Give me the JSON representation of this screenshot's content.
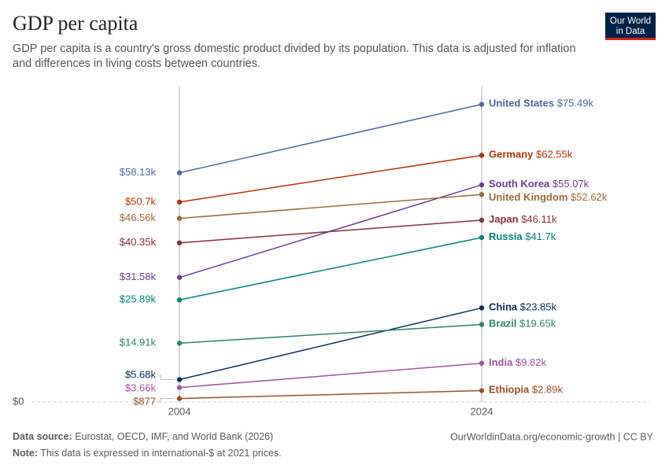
{
  "chart_data": {
    "type": "slope",
    "title": "GDP per capita",
    "subtitle": [
      "GDP per capita is a country's gross domestic product divided by its population. This data is adjusted for inflation",
      "and differences in living costs between countries."
    ],
    "logo": [
      "Our World",
      "in Data"
    ],
    "categories": [
      "2004",
      "2024"
    ],
    "ylim": [
      0,
      80000
    ],
    "yticks": [
      {
        "value": 0,
        "label": "$0"
      }
    ],
    "grid": true,
    "series": [
      {
        "name": "United States",
        "color": "#4c6a9c",
        "values": [
          58130,
          75490
        ],
        "value_labels": [
          "$58.13k",
          "$75.49k"
        ]
      },
      {
        "name": "Germany",
        "color": "#b13507",
        "values": [
          50700,
          62550
        ],
        "value_labels": [
          "$50.7k",
          "$62.55k"
        ]
      },
      {
        "name": "South Korea",
        "color": "#6d3e91",
        "values": [
          31580,
          55070
        ],
        "value_labels": [
          "$31.58k",
          "$55.07k"
        ]
      },
      {
        "name": "United Kingdom",
        "color": "#996d39",
        "values": [
          46560,
          52620
        ],
        "value_labels": [
          "$46.56k",
          "$52.62k"
        ]
      },
      {
        "name": "Japan",
        "color": "#883039",
        "values": [
          40350,
          46110
        ],
        "value_labels": [
          "$40.35k",
          "$46.11k"
        ]
      },
      {
        "name": "Russia",
        "color": "#00847e",
        "values": [
          25890,
          41700
        ],
        "value_labels": [
          "$25.89k",
          "$41.7k"
        ]
      },
      {
        "name": "China",
        "color": "#0c2c54",
        "values": [
          5680,
          23850
        ],
        "value_labels": [
          "$5.68k",
          "$23.85k"
        ]
      },
      {
        "name": "Brazil",
        "color": "#2c8465",
        "values": [
          14910,
          19650
        ],
        "value_labels": [
          "$14.91k",
          "$19.65k"
        ]
      },
      {
        "name": "India",
        "color": "#a2559c",
        "values": [
          3660,
          9820
        ],
        "value_labels": [
          "$3.66k",
          "$9.82k"
        ]
      },
      {
        "name": "Ethiopia",
        "color": "#9a5129",
        "values": [
          877,
          2890
        ],
        "value_labels": [
          "$877",
          "$2.89k"
        ]
      }
    ],
    "source_label": "Data source:",
    "source": "Eurostat, OECD, IMF, and World Bank (2026)",
    "url": "OurWorldinData.org/economic-growth | CC BY",
    "note_label": "Note:",
    "note": "This data is expressed in international-$ at 2021 prices."
  }
}
